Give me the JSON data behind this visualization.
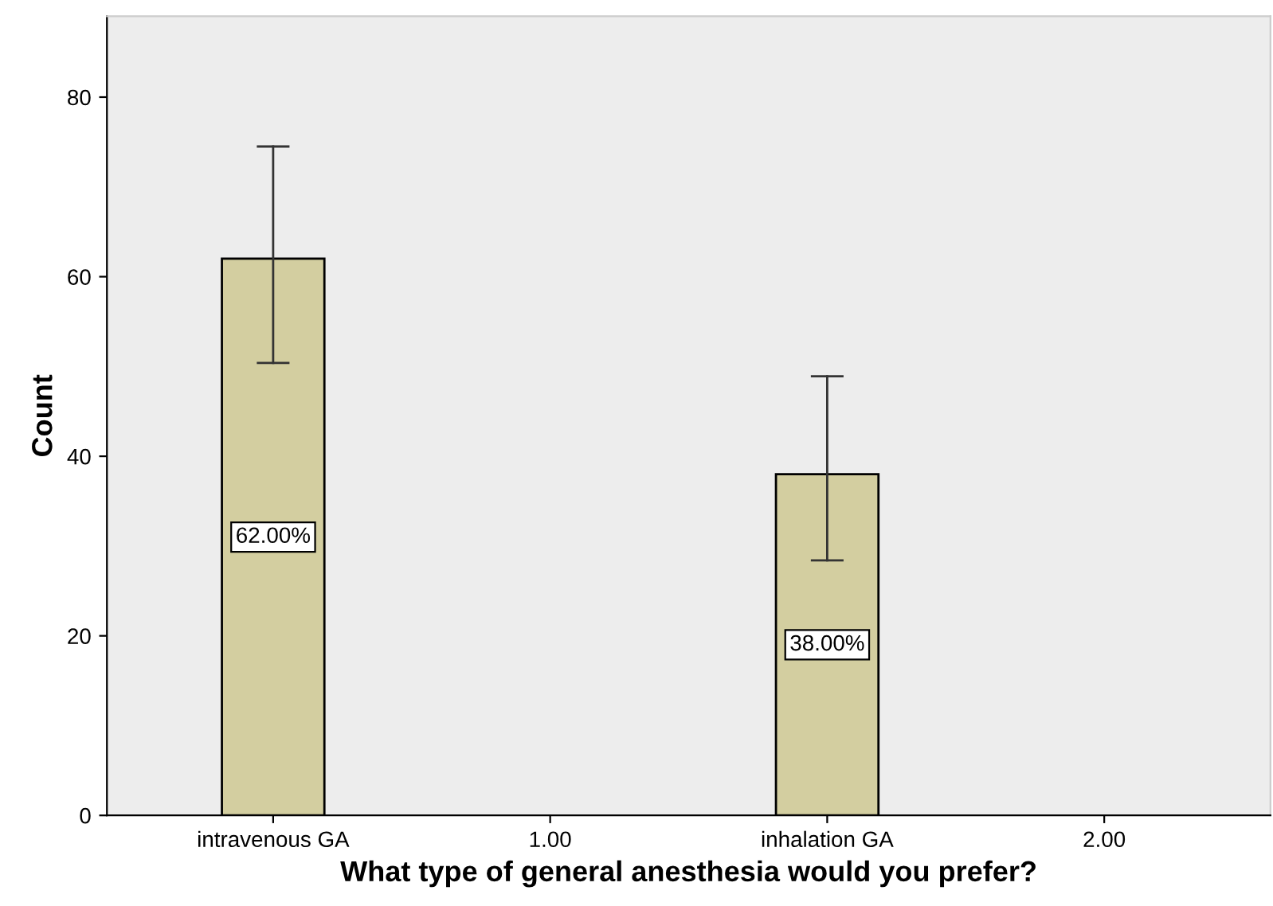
{
  "chart_data": {
    "type": "bar",
    "xlabel": "What type of general anesthesia would you prefer?",
    "ylabel": "Count",
    "categories": [
      "intravenous GA",
      "1.00",
      "inhalation GA",
      "2.00"
    ],
    "values": [
      62,
      null,
      38,
      null
    ],
    "errors": [
      [
        50.4,
        74.5
      ],
      null,
      [
        28.4,
        48.9
      ],
      null
    ],
    "value_labels": [
      "62.00%",
      null,
      "38.00%",
      null
    ],
    "color": "#d3cea0",
    "ylim": [
      0,
      89
    ],
    "yticks": [
      0,
      20,
      40,
      60,
      80
    ],
    "grid": false,
    "legend": false
  }
}
